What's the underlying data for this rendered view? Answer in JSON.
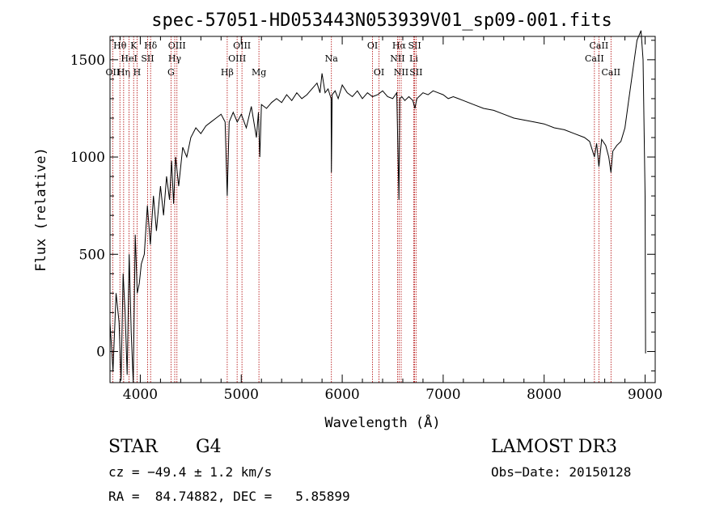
{
  "chart_data": {
    "type": "line",
    "title": "spec-57051-HD053443N053939V01_sp09-001.fits",
    "xlabel": "Wavelength (Å)",
    "ylabel": "Flux (relative)",
    "xlim": [
      3700,
      9100
    ],
    "ylim": [
      -160,
      1620
    ],
    "x_ticks": [
      4000,
      5000,
      6000,
      7000,
      8000,
      9000
    ],
    "y_ticks": [
      0,
      500,
      1000,
      1500
    ],
    "series": [
      {
        "name": "flux",
        "x": [
          3700,
          3730,
          3760,
          3790,
          3810,
          3830,
          3850,
          3870,
          3890,
          3910,
          3930,
          3950,
          3970,
          3990,
          4010,
          4040,
          4070,
          4100,
          4130,
          4160,
          4200,
          4230,
          4260,
          4290,
          4310,
          4330,
          4350,
          4380,
          4420,
          4460,
          4500,
          4550,
          4600,
          4650,
          4700,
          4750,
          4800,
          4840,
          4861,
          4880,
          4920,
          4960,
          5000,
          5050,
          5100,
          5150,
          5170,
          5184,
          5200,
          5250,
          5300,
          5350,
          5400,
          5450,
          5500,
          5550,
          5600,
          5650,
          5700,
          5750,
          5780,
          5800,
          5830,
          5860,
          5890,
          5893,
          5900,
          5930,
          5960,
          6000,
          6050,
          6100,
          6150,
          6200,
          6250,
          6300,
          6350,
          6400,
          6450,
          6500,
          6540,
          6562,
          6570,
          6590,
          6620,
          6660,
          6700,
          6720,
          6740,
          6800,
          6850,
          6900,
          6950,
          7000,
          7050,
          7100,
          7150,
          7200,
          7300,
          7400,
          7500,
          7600,
          7700,
          7800,
          7900,
          8000,
          8100,
          8200,
          8300,
          8400,
          8450,
          8498,
          8520,
          8542,
          8570,
          8610,
          8640,
          8662,
          8680,
          8720,
          8760,
          8800,
          8840,
          8880,
          8920,
          8960,
          8980,
          9000,
          9005
        ],
        "y": [
          150,
          -100,
          300,
          150,
          -150,
          400,
          200,
          -120,
          500,
          100,
          -160,
          600,
          300,
          350,
          450,
          500,
          750,
          550,
          800,
          620,
          850,
          700,
          900,
          780,
          980,
          760,
          1000,
          850,
          1050,
          1000,
          1100,
          1150,
          1120,
          1160,
          1180,
          1200,
          1220,
          1180,
          800,
          1180,
          1230,
          1180,
          1220,
          1150,
          1260,
          1100,
          1230,
          1000,
          1270,
          1250,
          1280,
          1300,
          1280,
          1320,
          1290,
          1330,
          1300,
          1320,
          1350,
          1380,
          1330,
          1430,
          1330,
          1350,
          1300,
          920,
          1320,
          1340,
          1300,
          1370,
          1330,
          1310,
          1340,
          1300,
          1330,
          1310,
          1320,
          1340,
          1310,
          1300,
          1330,
          780,
          1300,
          1310,
          1290,
          1310,
          1290,
          1250,
          1300,
          1330,
          1320,
          1340,
          1330,
          1320,
          1300,
          1310,
          1300,
          1290,
          1270,
          1250,
          1240,
          1220,
          1200,
          1190,
          1180,
          1170,
          1150,
          1140,
          1120,
          1100,
          1080,
          1000,
          1070,
          950,
          1090,
          1060,
          1000,
          920,
          1030,
          1060,
          1080,
          1150,
          1300,
          1450,
          1600,
          1650,
          1500,
          800,
          -10
        ]
      }
    ],
    "spectral_lines": [
      {
        "label": "Hθ",
        "x": 3798,
        "row": 0
      },
      {
        "label": "OII",
        "x": 3727,
        "row": 2
      },
      {
        "label": "Hη",
        "x": 3835,
        "row": 2
      },
      {
        "label": "HeI",
        "x": 3889,
        "row": 1
      },
      {
        "label": "K",
        "x": 3934,
        "row": 0
      },
      {
        "label": "H",
        "x": 3968,
        "row": 2
      },
      {
        "label": "SII",
        "x": 4072,
        "row": 1
      },
      {
        "label": "Hδ",
        "x": 4102,
        "row": 0
      },
      {
        "label": "OIII",
        "x": 4363,
        "row": 0
      },
      {
        "label": "Hγ",
        "x": 4341,
        "row": 1
      },
      {
        "label": "G",
        "x": 4304,
        "row": 2
      },
      {
        "label": "Hβ",
        "x": 4861,
        "row": 2
      },
      {
        "label": "OIII",
        "x": 4959,
        "row": 1
      },
      {
        "label": "OIII",
        "x": 5007,
        "row": 0
      },
      {
        "label": "Mg",
        "x": 5175,
        "row": 2
      },
      {
        "label": "Na",
        "x": 5893,
        "row": 1
      },
      {
        "label": "OI",
        "x": 6300,
        "row": 0
      },
      {
        "label": "OI",
        "x": 6364,
        "row": 2
      },
      {
        "label": "Hα",
        "x": 6563,
        "row": 0
      },
      {
        "label": "NII",
        "x": 6548,
        "row": 1
      },
      {
        "label": "NII",
        "x": 6584,
        "row": 2
      },
      {
        "label": "SII",
        "x": 6717,
        "row": 0
      },
      {
        "label": "Li",
        "x": 6708,
        "row": 1
      },
      {
        "label": "SII",
        "x": 6731,
        "row": 2
      },
      {
        "label": "CaII",
        "x": 8542,
        "row": 0
      },
      {
        "label": "CaII",
        "x": 8498,
        "row": 1
      },
      {
        "label": "CaII",
        "x": 8662,
        "row": 2
      }
    ]
  },
  "info": {
    "class": "STAR",
    "subclass": "G4",
    "survey": "LAMOST DR3",
    "cz": "cz = −49.4 ± 1.2 km/s",
    "obs_date": "Obs−Date: 20150128",
    "radec": "RA =  84.74882, DEC =   5.85899"
  }
}
